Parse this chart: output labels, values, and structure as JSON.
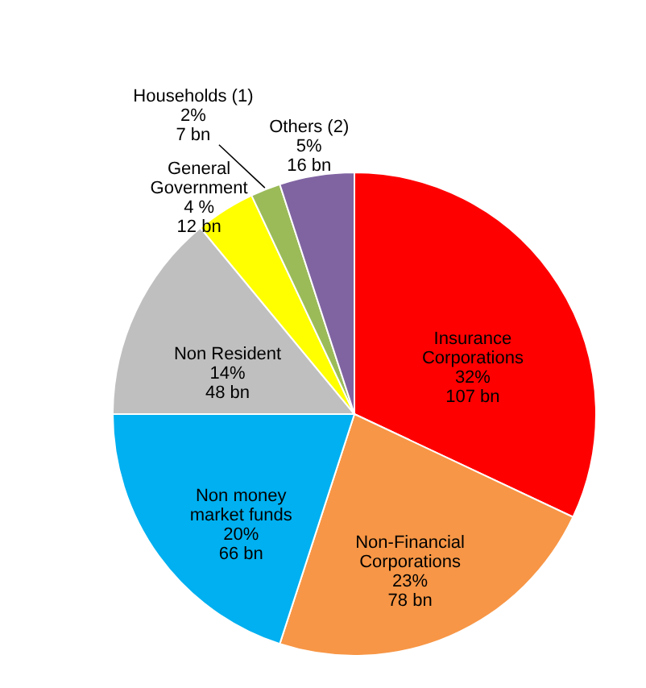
{
  "chart_data": {
    "type": "pie",
    "categories": [
      "Insurance Corporations",
      "Non-Financial Corporations",
      "Non money market funds",
      "Non Resident",
      "General Government",
      "Households (1)",
      "Others (2)"
    ],
    "values": [
      32,
      23,
      20,
      14,
      4,
      2,
      5
    ],
    "colors": [
      "#ff0000",
      "#f79646",
      "#00b0f0",
      "#bfbfbf",
      "#ffff00",
      "#9bbb59",
      "#8064a2"
    ],
    "value_labels": [
      "32%\n107 bn",
      "23%\n78 bn",
      "20%\n66 bn",
      "14%\n48 bn",
      "4 %\n12 bn",
      "2%\n7 bn",
      "5%\n16 bn"
    ]
  }
}
